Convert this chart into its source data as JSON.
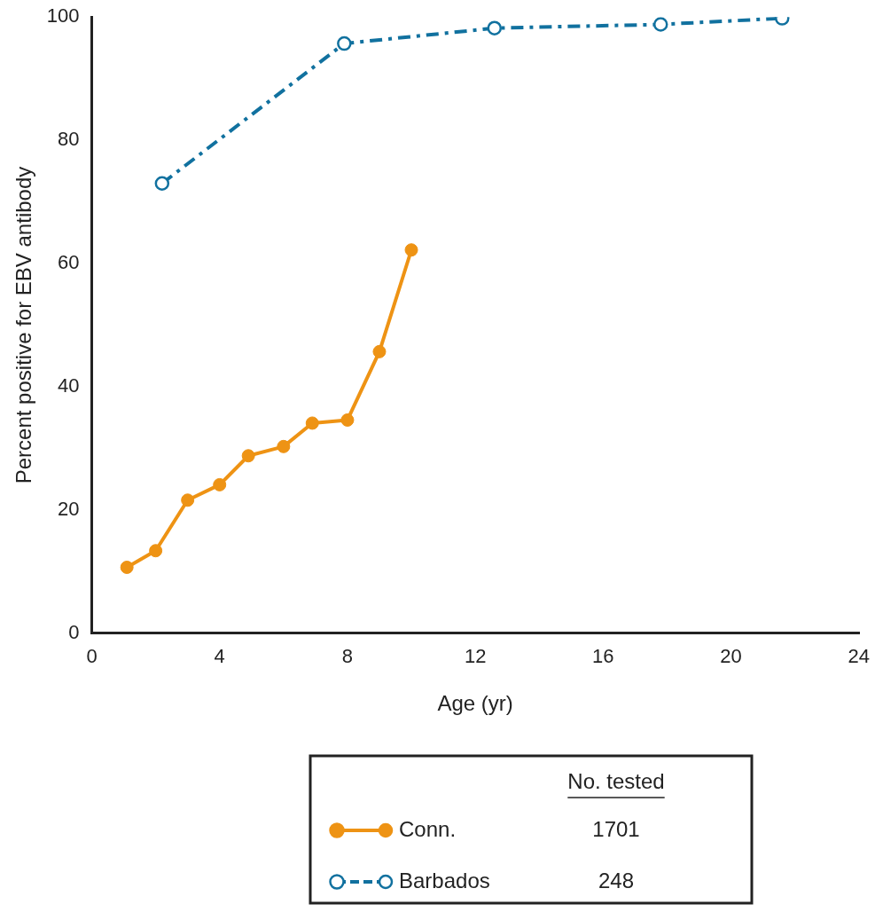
{
  "chart_data": {
    "type": "line",
    "xlabel": "Age (yr)",
    "ylabel": "Percent positive for EBV antibody",
    "xlim": [
      0,
      24
    ],
    "xticks": [
      0,
      4,
      8,
      12,
      16,
      20,
      24
    ],
    "ylim": [
      0,
      100
    ],
    "yticks": [
      0,
      20,
      40,
      60,
      80,
      100
    ],
    "grid": false,
    "legend": "bottom",
    "marker": "circle",
    "series": [
      {
        "name": "Conn.",
        "color": "#ee9314",
        "line_style": "solid",
        "x": [
          1.1,
          2.0,
          3.0,
          4.0,
          4.9,
          6.0,
          6.9,
          8.0,
          9.0,
          10.0
        ],
        "values": [
          10.7,
          13.4,
          21.6,
          24.1,
          28.8,
          30.3,
          34.1,
          34.6,
          45.7,
          62.2
        ]
      },
      {
        "name": "Barbados",
        "color": "#11719f",
        "line_style": "dashed",
        "x": [
          2.2,
          7.9,
          12.6,
          17.8,
          21.6
        ],
        "values": [
          73.0,
          95.7,
          98.2,
          98.8,
          99.8
        ]
      }
    ],
    "annotations": [
      "No. tested",
      "1701",
      "248"
    ]
  }
}
